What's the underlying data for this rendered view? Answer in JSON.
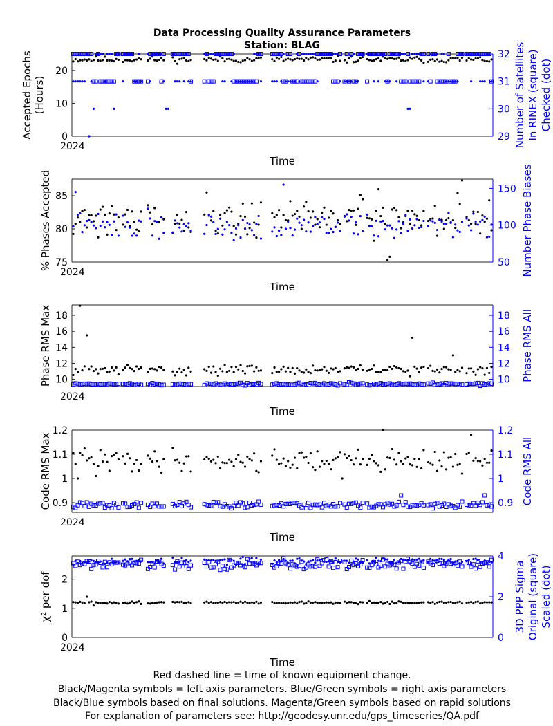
{
  "title": "Data Processing Quality Assurance Parameters",
  "subtitle": "Station: BLAG",
  "footer": [
    "Red dashed line = time of known equipment change.",
    "Black/Magenta symbols = left axis parameters. Blue/Green symbols = right axis parameters",
    "Black/Blue symbols based on final solutions.  Magenta/Green symbols based on rapid solutions",
    "For explanation of parameters see: http://geodesy.unr.edu/gps_timeseries/QA.pdf"
  ],
  "colors": {
    "left": "#000000",
    "right": "#0000ff",
    "axis": "#262626"
  },
  "chart_data": [
    {
      "type": "scatter",
      "xlabel": "Time",
      "x_tick_label": "2024",
      "ylabel_left": [
        "Accepted Epochs",
        "(Hours)"
      ],
      "ylabel_right": [
        "Number of Satellites",
        "In RINEX (square)",
        "Checked (dot)"
      ],
      "ylim_left": [
        0,
        25
      ],
      "yticks_left": [
        0,
        10,
        20
      ],
      "ylim_right": [
        29,
        32
      ],
      "yticks_right": [
        29,
        30,
        31,
        32
      ],
      "series": [
        {
          "axis": "left",
          "marker": "dot",
          "seed": 11,
          "base": 23.3,
          "spread": 0.7,
          "outliers": []
        },
        {
          "axis": "right",
          "marker": "square",
          "seed": 12,
          "base": 31,
          "levels": [
            31,
            32
          ],
          "mode": "mixed"
        },
        {
          "axis": "right",
          "marker": "dot",
          "seed": 13,
          "base": 31,
          "levels": [
            31,
            32
          ],
          "mode": "mixed",
          "outliers": [
            [
              7,
              29
            ],
            [
              9,
              30
            ],
            [
              18,
              30
            ],
            [
              41,
              30
            ],
            [
              42,
              30
            ],
            [
              148,
              30
            ],
            [
              149,
              30
            ]
          ]
        }
      ]
    },
    {
      "type": "scatter",
      "xlabel": "Time",
      "x_tick_label": "2024",
      "ylabel_left": [
        "% Phases Accepted"
      ],
      "ylabel_right": [
        "Number Phase Biases"
      ],
      "ylim_left": [
        75,
        87.5
      ],
      "yticks_left": [
        75,
        80,
        85
      ],
      "ylim_right": [
        50,
        162.5
      ],
      "yticks_right": [
        50,
        100,
        150
      ],
      "series": [
        {
          "axis": "left",
          "marker": "dot",
          "seed": 21,
          "base": 81.8,
          "spread": 2.2,
          "outliers": [
            [
              139,
              75.3
            ],
            [
              140,
              75.8
            ],
            [
              172,
              87.3
            ]
          ]
        },
        {
          "axis": "right",
          "marker": "dot",
          "seed": 22,
          "base": 100,
          "spread": 13,
          "outliers": [
            [
              1,
              145
            ],
            [
              93,
              155
            ]
          ]
        }
      ]
    },
    {
      "type": "scatter",
      "xlabel": "Time",
      "x_tick_label": "2024",
      "ylabel_left": [
        "Phase RMS Max"
      ],
      "ylabel_right": [
        "Phase RMS All"
      ],
      "ylim_left": [
        9.1,
        19.3
      ],
      "yticks_left": [
        10,
        12,
        14,
        16,
        18
      ],
      "ylim_right": [
        9.1,
        19.3
      ],
      "yticks_right": [
        10,
        12,
        14,
        16,
        18
      ],
      "series": [
        {
          "axis": "left",
          "marker": "dot",
          "seed": 31,
          "base": 11.2,
          "spread": 0.45,
          "outliers": [
            [
              3,
              19.2
            ],
            [
              6,
              15.5
            ],
            [
              150,
              15.2
            ],
            [
              168,
              13.0
            ]
          ]
        },
        {
          "axis": "right",
          "marker": "square",
          "seed": 32,
          "base": 9.4,
          "spread": 0.12,
          "outliers": []
        }
      ]
    },
    {
      "type": "scatter",
      "xlabel": "Time",
      "x_tick_label": "2024",
      "ylabel_left": [
        "Code RMS Max"
      ],
      "ylabel_right": [
        "Code RMS All"
      ],
      "ylim_left": [
        0.86,
        1.2
      ],
      "yticks_left": [
        0.9,
        1,
        1.1,
        1.2
      ],
      "ylim_right": [
        0.86,
        1.2
      ],
      "yticks_right": [
        0.9,
        1,
        1.1,
        1.2
      ],
      "series": [
        {
          "axis": "left",
          "marker": "dot",
          "seed": 41,
          "base": 1.075,
          "spread": 0.035,
          "outliers": [
            [
              2,
              1.0
            ],
            [
              10,
              1.01
            ],
            [
              119,
              1.0
            ],
            [
              137,
              1.2
            ],
            [
              172,
              1.02
            ],
            [
              176,
              1.18
            ]
          ]
        },
        {
          "axis": "right",
          "marker": "square",
          "seed": 42,
          "base": 0.89,
          "spread": 0.01,
          "outliers": [
            [
              145,
              0.93
            ],
            [
              182,
              0.93
            ]
          ]
        }
      ]
    },
    {
      "type": "scatter",
      "xlabel": "Time",
      "x_tick_label": "2024",
      "ylabel_left": [
        "χ² per dof"
      ],
      "ylabel_right": [
        "3D PPP Sigma",
        "Original (square)",
        "Scaled (dot)"
      ],
      "ylim_left": [
        0,
        2.8
      ],
      "yticks_left": [
        0,
        1,
        2
      ],
      "ylim_right": [
        0,
        4
      ],
      "yticks_right": [
        0,
        2,
        4
      ],
      "series": [
        {
          "axis": "left",
          "marker": "dot",
          "seed": 51,
          "base": 1.2,
          "spread": 0.03,
          "outliers": [
            [
              6,
              1.4
            ],
            [
              9,
              1.1
            ]
          ]
        },
        {
          "axis": "right",
          "marker": "square",
          "seed": 52,
          "base": 3.6,
          "spread": 0.18,
          "outliers": []
        },
        {
          "axis": "right",
          "marker": "dot",
          "seed": 53,
          "base": 3.75,
          "spread": 0.12,
          "outliers": []
        }
      ]
    }
  ]
}
